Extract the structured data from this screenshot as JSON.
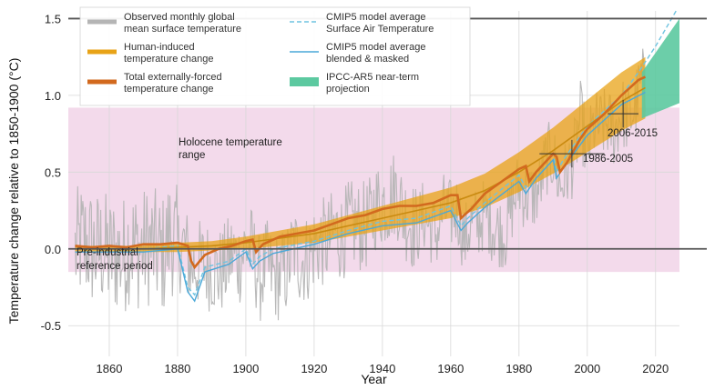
{
  "chart_data": {
    "type": "line",
    "title": "",
    "xlabel": "Year",
    "ylabel": "Temperature change relative to 1850-1900 (°C)",
    "xlim": [
      1848,
      2027
    ],
    "ylim": [
      -0.7,
      1.55
    ],
    "xticks": [
      1860,
      1880,
      1900,
      1920,
      1940,
      1960,
      1980,
      2000,
      2020
    ],
    "yticks": [
      -0.5,
      0.0,
      0.5,
      1.0,
      1.5
    ],
    "xtick_labels": [
      "1860",
      "1880",
      "1900",
      "1920",
      "1940",
      "1960",
      "1980",
      "2000",
      "2020"
    ],
    "ytick_labels": [
      "-0.5",
      "0.0",
      "0.5",
      "1.0",
      "1.5"
    ],
    "grid": true,
    "legend": {
      "position": "top-left",
      "entries": [
        {
          "label": "Observed monthly global",
          "label2": "mean surface temperature",
          "color": "#b5b5b5",
          "kind": "thick-line"
        },
        {
          "label": "Human-induced",
          "label2": "temperature change",
          "color": "#e8a317",
          "kind": "thick-line"
        },
        {
          "label": "Total externally-forced",
          "label2": "temperature change",
          "color": "#d2691e",
          "kind": "thick-line"
        },
        {
          "label": "CMIP5 model average",
          "label2": "Surface Air Temperature",
          "color": "#6ec3e0",
          "kind": "dashed-line"
        },
        {
          "label": "CMIP5 model average",
          "label2": "blended & masked",
          "color": "#4aa8d8",
          "kind": "line"
        },
        {
          "label": "IPCC-AR5 near-term",
          "label2": "projection",
          "color": "#5cc9a0",
          "kind": "patch"
        }
      ]
    },
    "annotations": {
      "holocene": {
        "line1": "Holocene temperature",
        "line2": "range",
        "color": "#d27fb0"
      },
      "preindustrial": {
        "line1": "Pre-industrial",
        "line2": "reference period"
      },
      "period_1986": {
        "label": "1986-2005",
        "x_range": [
          1986,
          2005
        ],
        "y": 0.62
      },
      "period_2006": {
        "label": "2006-2015",
        "x_range": [
          2006,
          2015
        ],
        "y": 0.88
      }
    },
    "holocene_band": {
      "y_range": [
        -0.15,
        0.92
      ],
      "color": "#f2d6e9"
    },
    "reference_lines": [
      0.0,
      1.5
    ],
    "observed_monthly": {
      "name": "Observed monthly global mean surface temperature",
      "x": [
        1850,
        1852,
        1854,
        1856,
        1858,
        1860,
        1862,
        1864,
        1866,
        1868,
        1870,
        1872,
        1874,
        1876,
        1878,
        1880,
        1882,
        1884,
        1886,
        1888,
        1890,
        1892,
        1894,
        1896,
        1898,
        1900,
        1902,
        1904,
        1906,
        1908,
        1910,
        1912,
        1914,
        1916,
        1918,
        1920,
        1922,
        1924,
        1926,
        1928,
        1930,
        1932,
        1934,
        1936,
        1938,
        1940,
        1942,
        1944,
        1946,
        1948,
        1950,
        1952,
        1954,
        1956,
        1958,
        1960,
        1962,
        1964,
        1966,
        1968,
        1970,
        1972,
        1974,
        1976,
        1978,
        1980,
        1982,
        1984,
        1986,
        1988,
        1990,
        1992,
        1994,
        1996,
        1998,
        2000,
        2002,
        2004,
        2006,
        2008,
        2010,
        2012,
        2014,
        2016,
        2017
      ],
      "y": [
        -0.02,
        0.05,
        0.02,
        -0.02,
        0.0,
        -0.05,
        -0.03,
        -0.06,
        0.05,
        0.0,
        0.0,
        0.03,
        -0.02,
        -0.04,
        0.12,
        0.0,
        0.02,
        -0.12,
        -0.1,
        -0.1,
        -0.12,
        -0.16,
        -0.12,
        -0.03,
        -0.08,
        0.02,
        -0.02,
        -0.2,
        -0.1,
        -0.18,
        -0.18,
        -0.14,
        0.02,
        -0.08,
        -0.06,
        0.02,
        0.04,
        0.04,
        0.12,
        0.08,
        0.15,
        0.15,
        0.14,
        0.16,
        0.28,
        0.3,
        0.32,
        0.38,
        0.24,
        0.18,
        0.12,
        0.22,
        0.14,
        0.1,
        0.26,
        0.22,
        0.26,
        0.05,
        0.18,
        0.16,
        0.24,
        0.16,
        0.12,
        0.1,
        0.28,
        0.42,
        0.34,
        0.34,
        0.4,
        0.58,
        0.6,
        0.4,
        0.5,
        0.58,
        0.86,
        0.62,
        0.8,
        0.8,
        0.82,
        0.76,
        0.9,
        0.84,
        0.92,
        1.1,
        1.02
      ],
      "envelope": 0.3,
      "color": "#b5b5b5"
    },
    "human_induced": {
      "name": "Human-induced temperature change",
      "x": [
        1850,
        1860,
        1870,
        1880,
        1890,
        1900,
        1910,
        1920,
        1930,
        1940,
        1950,
        1960,
        1970,
        1980,
        1990,
        2000,
        2010,
        2017
      ],
      "y": [
        0.0,
        0.0,
        0.0,
        0.01,
        0.02,
        0.04,
        0.07,
        0.1,
        0.15,
        0.2,
        0.25,
        0.3,
        0.38,
        0.5,
        0.64,
        0.8,
        0.96,
        1.05
      ],
      "uncertainty": [
        0.02,
        0.02,
        0.02,
        0.03,
        0.03,
        0.04,
        0.05,
        0.06,
        0.07,
        0.08,
        0.09,
        0.1,
        0.11,
        0.13,
        0.15,
        0.17,
        0.19,
        0.2
      ],
      "color": "#e8a317"
    },
    "total_forced": {
      "name": "Total externally-forced temperature change",
      "x": [
        1850,
        1855,
        1860,
        1865,
        1870,
        1875,
        1880,
        1883,
        1884,
        1885,
        1888,
        1892,
        1896,
        1900,
        1902,
        1903,
        1905,
        1910,
        1915,
        1920,
        1925,
        1930,
        1935,
        1940,
        1945,
        1950,
        1955,
        1960,
        1962,
        1963,
        1964,
        1966,
        1970,
        1975,
        1980,
        1982,
        1983,
        1985,
        1990,
        1991,
        1992,
        1994,
        1998,
        2000,
        2005,
        2010,
        2015,
        2017
      ],
      "y": [
        0.02,
        0.01,
        0.02,
        0.01,
        0.03,
        0.03,
        0.04,
        0.02,
        -0.08,
        -0.12,
        -0.04,
        0.0,
        0.02,
        0.05,
        0.06,
        -0.02,
        0.03,
        0.08,
        0.1,
        0.12,
        0.16,
        0.2,
        0.22,
        0.26,
        0.28,
        0.28,
        0.3,
        0.35,
        0.35,
        0.2,
        0.22,
        0.26,
        0.36,
        0.44,
        0.52,
        0.54,
        0.44,
        0.5,
        0.62,
        0.6,
        0.5,
        0.56,
        0.72,
        0.78,
        0.88,
        1.0,
        1.1,
        1.12
      ],
      "color": "#d2691e"
    },
    "cmip5_sat": {
      "name": "CMIP5 model average Surface Air Temperature",
      "x": [
        1850,
        1860,
        1870,
        1880,
        1883,
        1885,
        1888,
        1895,
        1900,
        1902,
        1904,
        1908,
        1920,
        1930,
        1940,
        1950,
        1960,
        1963,
        1965,
        1970,
        1980,
        1982,
        1985,
        1990,
        1991,
        1993,
        2000,
        2010,
        2015,
        2020,
        2026
      ],
      "y": [
        0.0,
        0.0,
        0.0,
        0.02,
        -0.25,
        -0.3,
        -0.12,
        -0.08,
        0.0,
        -0.1,
        -0.05,
        0.0,
        0.05,
        0.12,
        0.18,
        0.2,
        0.28,
        0.15,
        0.2,
        0.3,
        0.48,
        0.4,
        0.5,
        0.62,
        0.5,
        0.58,
        0.8,
        1.0,
        1.15,
        1.32,
        1.55
      ],
      "color": "#6ec3e0"
    },
    "cmip5_blended": {
      "name": "CMIP5 model average blended & masked",
      "x": [
        1850,
        1860,
        1870,
        1880,
        1883,
        1885,
        1888,
        1895,
        1900,
        1902,
        1904,
        1908,
        1920,
        1930,
        1940,
        1950,
        1960,
        1963,
        1965,
        1970,
        1980,
        1982,
        1985,
        1990,
        1991,
        1993,
        2000,
        2010,
        2017
      ],
      "y": [
        -0.02,
        -0.02,
        -0.02,
        0.0,
        -0.28,
        -0.34,
        -0.15,
        -0.1,
        -0.02,
        -0.13,
        -0.08,
        -0.03,
        0.03,
        0.1,
        0.15,
        0.17,
        0.25,
        0.12,
        0.17,
        0.27,
        0.44,
        0.36,
        0.46,
        0.58,
        0.46,
        0.53,
        0.74,
        0.94,
        1.02
      ],
      "color": "#4aa8d8"
    },
    "ar5_projection": {
      "name": "IPCC-AR5 near-term projection",
      "x": [
        2016,
        2027
      ],
      "upper": [
        1.15,
        1.5
      ],
      "lower": [
        0.85,
        0.95
      ],
      "color": "#5cc9a0"
    }
  }
}
